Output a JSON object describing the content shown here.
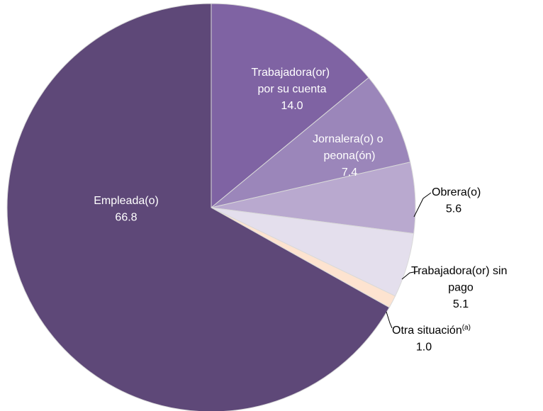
{
  "chart_data": {
    "type": "pie",
    "categories": [
      "Trabajadora(or) por su cuenta",
      "Jornalera(o) o peona(ón)",
      "Obrera(o)",
      "Trabajadora(or) sin pago",
      "Otra situación",
      "Empleada(o)"
    ],
    "footnote_marks": [
      null,
      null,
      null,
      null,
      "(a)",
      null
    ],
    "values": [
      14.0,
      7.4,
      5.6,
      5.1,
      1.0,
      66.8
    ],
    "value_labels": [
      "14.0",
      "7.4",
      "5.6",
      "5.1",
      "1.0",
      "66.8"
    ],
    "colors": [
      "#7f63a3",
      "#9b86ba",
      "#b9a9cf",
      "#e4dfed",
      "#fde3d0",
      "#5e4878"
    ]
  }
}
